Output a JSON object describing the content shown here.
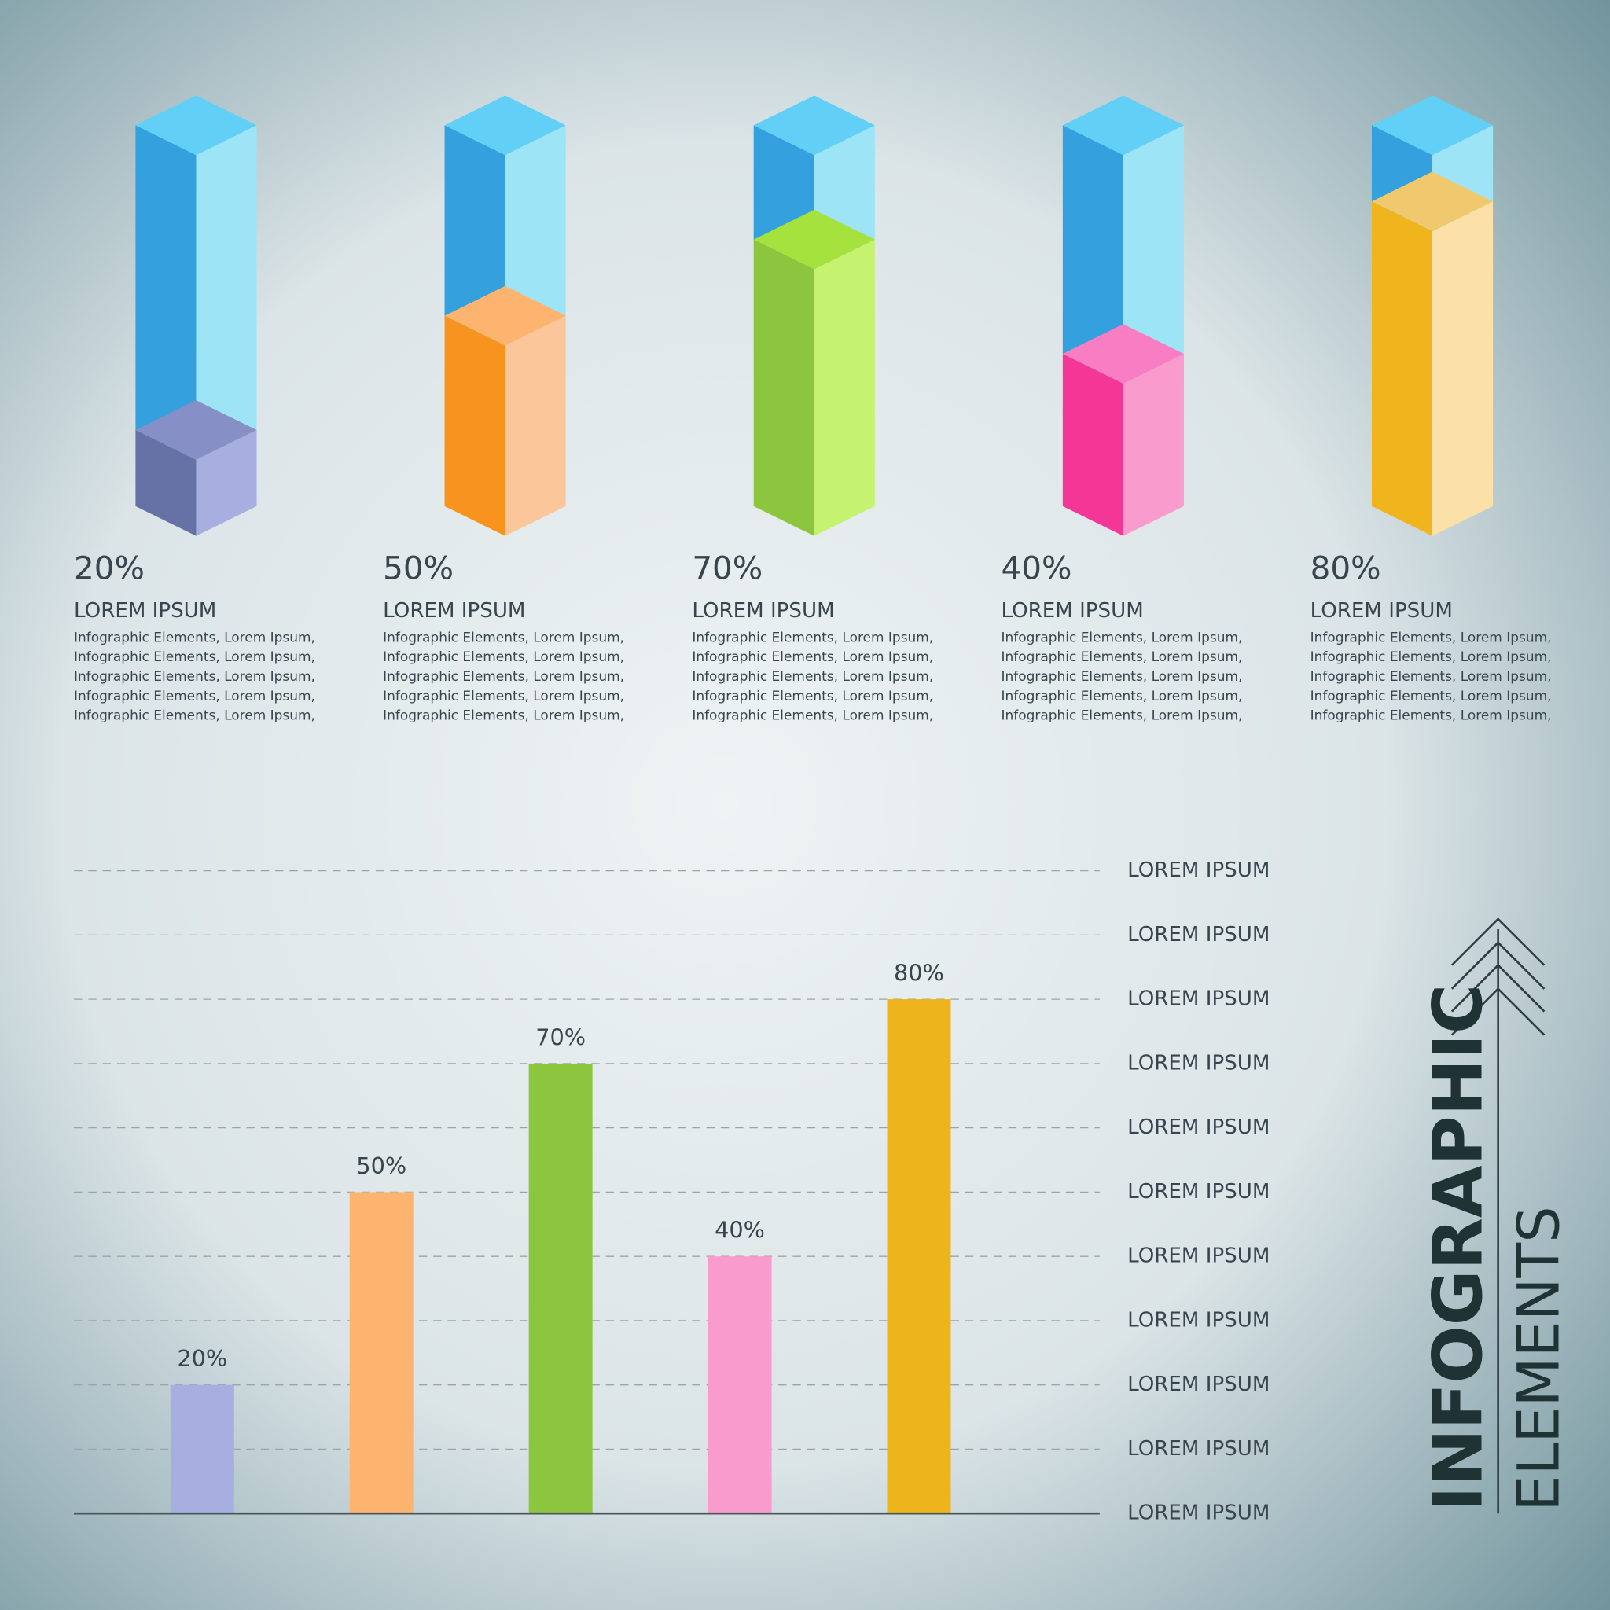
{
  "header": {
    "title": "INFOGRAPHIC",
    "subtitle": "ELEMENTS"
  },
  "chart_data": [
    {
      "type": "column3d",
      "values": [
        20,
        50,
        70,
        40,
        80
      ],
      "value_labels": [
        "20%",
        "50%",
        "70%",
        "40%",
        "80%"
      ],
      "ylim": [
        0,
        100
      ],
      "labels": [
        "LOREM IPSUM",
        "LOREM IPSUM",
        "LOREM IPSUM",
        "LOREM IPSUM",
        "LOREM IPSUM"
      ],
      "descriptions": [
        [
          "Infographic Elements, Lorem Ipsum,",
          "Infographic Elements, Lorem Ipsum,",
          "Infographic Elements, Lorem Ipsum,",
          "Infographic Elements, Lorem Ipsum,",
          "Infographic Elements, Lorem Ipsum,"
        ],
        [
          "Infographic Elements, Lorem Ipsum,",
          "Infographic Elements, Lorem Ipsum,",
          "Infographic Elements, Lorem Ipsum,",
          "Infographic Elements, Lorem Ipsum,",
          "Infographic Elements, Lorem Ipsum,"
        ],
        [
          "Infographic Elements, Lorem Ipsum,",
          "Infographic Elements, Lorem Ipsum,",
          "Infographic Elements, Lorem Ipsum,",
          "Infographic Elements, Lorem Ipsum,",
          "Infographic Elements, Lorem Ipsum,"
        ],
        [
          "Infographic Elements, Lorem Ipsum,",
          "Infographic Elements, Lorem Ipsum,",
          "Infographic Elements, Lorem Ipsum,",
          "Infographic Elements, Lorem Ipsum,",
          "Infographic Elements, Lorem Ipsum,"
        ],
        [
          "Infographic Elements, Lorem Ipsum,",
          "Infographic Elements, Lorem Ipsum,",
          "Infographic Elements, Lorem Ipsum,",
          "Infographic Elements, Lorem Ipsum,",
          "Infographic Elements, Lorem Ipsum,"
        ]
      ],
      "empty_color": {
        "side": "#34a0dd",
        "front": "#9de4f7",
        "top": "#62cff6"
      },
      "colors": [
        {
          "side": "#6672a6",
          "front": "#a7afe0",
          "top": "#8790c6"
        },
        {
          "side": "#f7931e",
          "front": "#fbc79a",
          "top": "#fdb46e"
        },
        {
          "side": "#8cc63f",
          "front": "#c5f26f",
          "top": "#a6e23e"
        },
        {
          "side": "#f43696",
          "front": "#f99ccd",
          "top": "#f87dc2"
        },
        {
          "side": "#f0b41c",
          "front": "#fbe0a8",
          "top": "#f0c86e"
        }
      ]
    },
    {
      "type": "bar",
      "values": [
        20,
        50,
        70,
        40,
        80
      ],
      "value_labels": [
        "20%",
        "50%",
        "70%",
        "40%",
        "80%"
      ],
      "colors": [
        "#a7afe0",
        "#fdb46e",
        "#8cc63f",
        "#f99ccd",
        "#edb41c"
      ],
      "ylim": [
        0,
        100
      ],
      "yticks": [
        {
          "value": 0,
          "label": "LOREM IPSUM"
        },
        {
          "value": 10,
          "label": "LOREM IPSUM"
        },
        {
          "value": 20,
          "label": "LOREM IPSUM"
        },
        {
          "value": 30,
          "label": "LOREM IPSUM"
        },
        {
          "value": 40,
          "label": "LOREM IPSUM"
        },
        {
          "value": 50,
          "label": "LOREM IPSUM"
        },
        {
          "value": 60,
          "label": "LOREM IPSUM"
        },
        {
          "value": 70,
          "label": "LOREM IPSUM"
        },
        {
          "value": 80,
          "label": "LOREM IPSUM"
        },
        {
          "value": 90,
          "label": "LOREM IPSUM"
        },
        {
          "value": 100,
          "label": "LOREM IPSUM"
        }
      ],
      "grid": true
    }
  ]
}
